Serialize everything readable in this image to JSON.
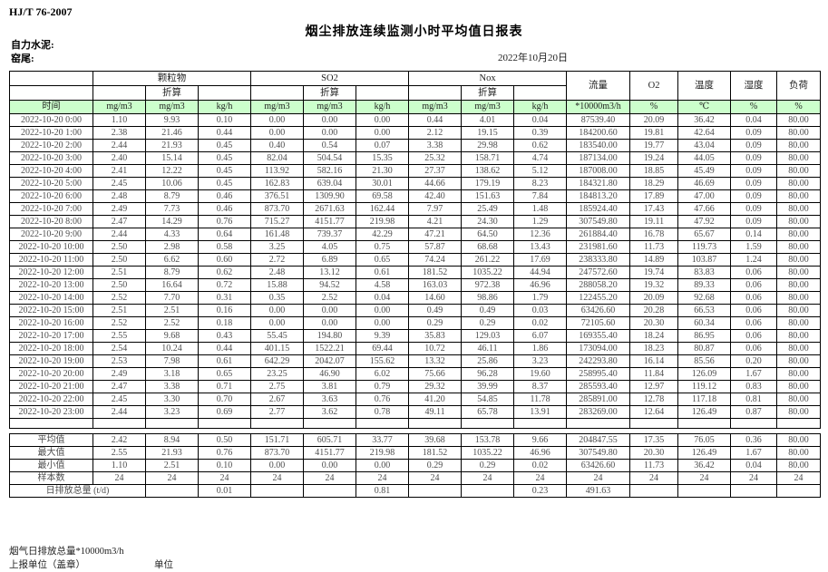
{
  "header": {
    "standard": "HJ/T  76-2007",
    "title": "烟尘排放连续监测小时平均值日报表",
    "company": "自力水泥:",
    "location": "窑尾:",
    "date": "2022年10月20日"
  },
  "colors": {
    "header_green": "#ccffcc"
  },
  "table": {
    "time_header": "时间",
    "converted_label": "折算",
    "groups": [
      "颗粒物",
      "SO2",
      "Nox"
    ],
    "single_columns": [
      "流量",
      "O2",
      "温度",
      "湿度",
      "负荷"
    ],
    "units": [
      "mg/m3",
      "mg/m3",
      "kg/h",
      "mg/m3",
      "mg/m3",
      "kg/h",
      "mg/m3",
      "mg/m3",
      "kg/h",
      "*10000m3/h",
      "%",
      "℃",
      "%",
      "%"
    ],
    "rows": [
      {
        "time": "2022-10-20  0:00",
        "values": [
          "1.10",
          "9.93",
          "0.10",
          "0.00",
          "0.00",
          "0.00",
          "0.44",
          "4.01",
          "0.04",
          "87539.40",
          "20.09",
          "36.42",
          "0.04",
          "80.00"
        ]
      },
      {
        "time": "2022-10-20  1:00",
        "values": [
          "2.38",
          "21.46",
          "0.44",
          "0.00",
          "0.00",
          "0.00",
          "2.12",
          "19.15",
          "0.39",
          "184200.60",
          "19.81",
          "42.64",
          "0.09",
          "80.00"
        ]
      },
      {
        "time": "2022-10-20  2:00",
        "values": [
          "2.44",
          "21.93",
          "0.45",
          "0.40",
          "0.54",
          "0.07",
          "3.38",
          "29.98",
          "0.62",
          "183540.00",
          "19.77",
          "43.04",
          "0.09",
          "80.00"
        ]
      },
      {
        "time": "2022-10-20  3:00",
        "values": [
          "2.40",
          "15.14",
          "0.45",
          "82.04",
          "504.54",
          "15.35",
          "25.32",
          "158.71",
          "4.74",
          "187134.00",
          "19.24",
          "44.05",
          "0.09",
          "80.00"
        ]
      },
      {
        "time": "2022-10-20  4:00",
        "values": [
          "2.41",
          "12.22",
          "0.45",
          "113.92",
          "582.16",
          "21.30",
          "27.37",
          "138.62",
          "5.12",
          "187008.00",
          "18.85",
          "45.49",
          "0.09",
          "80.00"
        ]
      },
      {
        "time": "2022-10-20  5:00",
        "values": [
          "2.45",
          "10.06",
          "0.45",
          "162.83",
          "639.04",
          "30.01",
          "44.66",
          "179.19",
          "8.23",
          "184321.80",
          "18.29",
          "46.69",
          "0.09",
          "80.00"
        ]
      },
      {
        "time": "2022-10-20  6:00",
        "values": [
          "2.48",
          "8.79",
          "0.46",
          "376.51",
          "1309.90",
          "69.58",
          "42.40",
          "151.63",
          "7.84",
          "184813.20",
          "17.89",
          "47.00",
          "0.09",
          "80.00"
        ]
      },
      {
        "time": "2022-10-20  7:00",
        "values": [
          "2.49",
          "7.73",
          "0.46",
          "873.70",
          "2671.63",
          "162.44",
          "7.97",
          "25.49",
          "1.48",
          "185924.40",
          "17.43",
          "47.66",
          "0.09",
          "80.00"
        ]
      },
      {
        "time": "2022-10-20  8:00",
        "values": [
          "2.47",
          "14.29",
          "0.76",
          "715.27",
          "4151.77",
          "219.98",
          "4.21",
          "24.30",
          "1.29",
          "307549.80",
          "19.11",
          "47.92",
          "0.09",
          "80.00"
        ]
      },
      {
        "time": "2022-10-20  9:00",
        "values": [
          "2.44",
          "4.33",
          "0.64",
          "161.48",
          "739.37",
          "42.29",
          "47.21",
          "64.50",
          "12.36",
          "261884.40",
          "16.78",
          "65.67",
          "0.14",
          "80.00"
        ]
      },
      {
        "time": "2022-10-20  10:00",
        "values": [
          "2.50",
          "2.98",
          "0.58",
          "3.25",
          "4.05",
          "0.75",
          "57.87",
          "68.68",
          "13.43",
          "231981.60",
          "11.73",
          "119.73",
          "1.59",
          "80.00"
        ]
      },
      {
        "time": "2022-10-20  11:00",
        "values": [
          "2.50",
          "6.62",
          "0.60",
          "2.72",
          "6.89",
          "0.65",
          "74.24",
          "261.22",
          "17.69",
          "238333.80",
          "14.89",
          "103.87",
          "1.24",
          "80.00"
        ]
      },
      {
        "time": "2022-10-20  12:00",
        "values": [
          "2.51",
          "8.79",
          "0.62",
          "2.48",
          "13.12",
          "0.61",
          "181.52",
          "1035.22",
          "44.94",
          "247572.60",
          "19.74",
          "83.83",
          "0.06",
          "80.00"
        ]
      },
      {
        "time": "2022-10-20  13:00",
        "values": [
          "2.50",
          "16.64",
          "0.72",
          "15.88",
          "94.52",
          "4.58",
          "163.03",
          "972.38",
          "46.96",
          "288058.20",
          "19.32",
          "89.33",
          "0.06",
          "80.00"
        ]
      },
      {
        "time": "2022-10-20  14:00",
        "values": [
          "2.52",
          "7.70",
          "0.31",
          "0.35",
          "2.52",
          "0.04",
          "14.60",
          "98.86",
          "1.79",
          "122455.20",
          "20.09",
          "92.68",
          "0.06",
          "80.00"
        ]
      },
      {
        "time": "2022-10-20  15:00",
        "values": [
          "2.51",
          "2.51",
          "0.16",
          "0.00",
          "0.00",
          "0.00",
          "0.49",
          "0.49",
          "0.03",
          "63426.60",
          "20.28",
          "66.53",
          "0.06",
          "80.00"
        ]
      },
      {
        "time": "2022-10-20  16:00",
        "values": [
          "2.52",
          "2.52",
          "0.18",
          "0.00",
          "0.00",
          "0.00",
          "0.29",
          "0.29",
          "0.02",
          "72105.60",
          "20.30",
          "60.34",
          "0.06",
          "80.00"
        ]
      },
      {
        "time": "2022-10-20  17:00",
        "values": [
          "2.55",
          "9.68",
          "0.43",
          "55.45",
          "194.80",
          "9.39",
          "35.83",
          "129.03",
          "6.07",
          "169355.40",
          "18.24",
          "86.95",
          "0.06",
          "80.00"
        ]
      },
      {
        "time": "2022-10-20  18:00",
        "values": [
          "2.54",
          "10.24",
          "0.44",
          "401.15",
          "1522.21",
          "69.44",
          "10.72",
          "46.11",
          "1.86",
          "173094.00",
          "18.23",
          "80.87",
          "0.06",
          "80.00"
        ]
      },
      {
        "time": "2022-10-20  19:00",
        "values": [
          "2.53",
          "7.98",
          "0.61",
          "642.29",
          "2042.07",
          "155.62",
          "13.32",
          "25.86",
          "3.23",
          "242293.80",
          "16.14",
          "85.56",
          "0.20",
          "80.00"
        ]
      },
      {
        "time": "2022-10-20  20:00",
        "values": [
          "2.49",
          "3.18",
          "0.65",
          "23.25",
          "46.90",
          "6.02",
          "75.66",
          "96.28",
          "19.60",
          "258995.40",
          "11.84",
          "126.09",
          "1.67",
          "80.00"
        ]
      },
      {
        "time": "2022-10-20  21:00",
        "values": [
          "2.47",
          "3.38",
          "0.71",
          "2.75",
          "3.81",
          "0.79",
          "29.32",
          "39.99",
          "8.37",
          "285593.40",
          "12.97",
          "119.12",
          "0.83",
          "80.00"
        ]
      },
      {
        "time": "2022-10-20  22:00",
        "values": [
          "2.45",
          "3.30",
          "0.70",
          "2.67",
          "3.63",
          "0.76",
          "41.20",
          "54.85",
          "11.78",
          "285891.00",
          "12.78",
          "117.18",
          "0.81",
          "80.00"
        ]
      },
      {
        "time": "2022-10-20  23:00",
        "values": [
          "2.44",
          "3.23",
          "0.69",
          "2.77",
          "3.62",
          "0.78",
          "49.11",
          "65.78",
          "13.91",
          "283269.00",
          "12.64",
          "126.49",
          "0.87",
          "80.00"
        ]
      }
    ],
    "summary": [
      {
        "label": "平均值",
        "values": [
          "2.42",
          "8.94",
          "0.50",
          "151.71",
          "605.71",
          "33.77",
          "39.68",
          "153.78",
          "9.66",
          "204847.55",
          "17.35",
          "76.05",
          "0.36",
          "80.00"
        ]
      },
      {
        "label": "最大值",
        "values": [
          "2.55",
          "21.93",
          "0.76",
          "873.70",
          "4151.77",
          "219.98",
          "181.52",
          "1035.22",
          "46.96",
          "307549.80",
          "20.30",
          "126.49",
          "1.67",
          "80.00"
        ]
      },
      {
        "label": "最小值",
        "values": [
          "1.10",
          "2.51",
          "0.10",
          "0.00",
          "0.00",
          "0.00",
          "0.29",
          "0.29",
          "0.02",
          "63426.60",
          "11.73",
          "36.42",
          "0.04",
          "80.00"
        ]
      },
      {
        "label": "样本数",
        "values": [
          "24",
          "24",
          "24",
          "24",
          "24",
          "24",
          "24",
          "24",
          "24",
          "24",
          "24",
          "24",
          "24",
          "24"
        ]
      }
    ],
    "total_row": {
      "label": "日排放总量 (t/d)",
      "values": [
        "",
        "0.01",
        "",
        "",
        "0.81",
        "",
        "",
        "0.23",
        "491.63",
        "",
        "",
        "",
        ""
      ]
    }
  },
  "footer": {
    "note": "烟气日排放总量*10000m3/h",
    "report_unit": "上报单位（盖章）",
    "unit_label": "单位"
  }
}
